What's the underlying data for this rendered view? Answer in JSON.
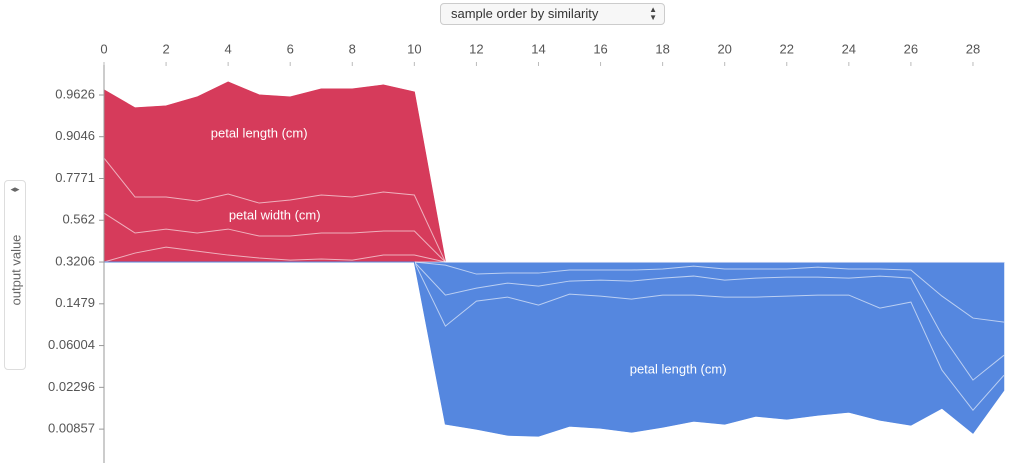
{
  "controls": {
    "order_select": "sample order by similarity"
  },
  "chart_data": {
    "type": "area",
    "ylabel": "output value",
    "yscale": "logit",
    "x": [
      0,
      1,
      2,
      3,
      4,
      5,
      6,
      7,
      8,
      9,
      10,
      11,
      12,
      13,
      14,
      15,
      16,
      17,
      18,
      19,
      20,
      21,
      22,
      23,
      24,
      25,
      26,
      27,
      28,
      29
    ],
    "xlim": [
      0,
      29
    ],
    "xticks": [
      0,
      2,
      4,
      6,
      8,
      10,
      12,
      14,
      16,
      18,
      20,
      22,
      24,
      26,
      28
    ],
    "ylim": [
      0.00411,
      0.9814
    ],
    "yticks": [
      0.9626,
      0.9046,
      0.7771,
      0.562,
      0.3206,
      0.1479,
      0.06004,
      0.02296,
      0.00857
    ],
    "series": [
      {
        "color": "#d63b5b",
        "values": [
          0.9667,
          0.9497,
          0.9519,
          0.9608,
          0.9723,
          0.9626,
          0.9608,
          0.9674,
          0.9674,
          0.9703,
          0.9651,
          0.3206,
          0.3206,
          0.3206,
          0.3206,
          0.3206,
          0.3206,
          0.3206,
          0.3206,
          0.3206,
          0.3206,
          0.3206,
          0.3206,
          0.3206,
          0.3206,
          0.3206,
          0.3206,
          0.3206,
          0.3206,
          0.3206
        ]
      },
      {
        "color": "#d63b5b",
        "values": [
          0.8506,
          0.6911,
          0.6911,
          0.6702,
          0.7062,
          0.6595,
          0.6755,
          0.7012,
          0.6911,
          0.7161,
          0.7012,
          0.3206,
          0.3206,
          0.3206,
          0.3206,
          0.3206,
          0.3206,
          0.3206,
          0.3206,
          0.3206,
          0.3206,
          0.3206,
          0.3206,
          0.3206,
          0.3206,
          0.3206,
          0.3206,
          0.3206,
          0.3206,
          0.3206
        ]
      },
      {
        "color": "#d63b5b",
        "values": [
          0.6039,
          0.4858,
          0.5095,
          0.4858,
          0.5095,
          0.4678,
          0.4678,
          0.4858,
          0.4858,
          0.4977,
          0.4977,
          0.3206,
          0.3206,
          0.3206,
          0.3206,
          0.3206,
          0.3206,
          0.3206,
          0.3206,
          0.3206,
          0.3206,
          0.3206,
          0.3206,
          0.3206,
          0.3206,
          0.3206,
          0.3206,
          0.3206,
          0.3206,
          0.3206
        ]
      },
      {
        "color": "#d63b5b",
        "values": [
          0.3206,
          0.3691,
          0.403,
          0.3801,
          0.358,
          0.3417,
          0.3309,
          0.3363,
          0.3309,
          0.358,
          0.358,
          0.3206,
          0.3206,
          0.3206,
          0.3206,
          0.3206,
          0.3206,
          0.3206,
          0.3206,
          0.3206,
          0.3206,
          0.3206,
          0.3206,
          0.3206,
          0.3206,
          0.3206,
          0.3206,
          0.3206,
          0.3206,
          0.3206
        ]
      },
      {
        "color": "#5587df",
        "values": [
          0.3206,
          0.3206,
          0.3206,
          0.3206,
          0.3206,
          0.3206,
          0.3206,
          0.3206,
          0.3206,
          0.3206,
          0.3206,
          0.3206,
          0.3206,
          0.3206,
          0.3206,
          0.3206,
          0.3206,
          0.3206,
          0.3206,
          0.3206,
          0.3206,
          0.3206,
          0.3206,
          0.3206,
          0.3206,
          0.3206,
          0.3206,
          0.3206,
          0.3206,
          0.3206
        ]
      },
      {
        "color": "#5587df",
        "values": [
          0.3206,
          0.3206,
          0.3206,
          0.3206,
          0.3206,
          0.3206,
          0.3206,
          0.3206,
          0.3206,
          0.3206,
          0.3206,
          0.3049,
          0.2614,
          0.266,
          0.266,
          0.2803,
          0.2803,
          0.2803,
          0.2852,
          0.2998,
          0.2852,
          0.2852,
          0.2852,
          0.2948,
          0.2852,
          0.2852,
          0.2803,
          0.1728,
          0.1098,
          0.1007
        ]
      },
      {
        "color": "#5587df",
        "values": [
          0.3206,
          0.3206,
          0.3206,
          0.3206,
          0.3206,
          0.3206,
          0.3206,
          0.3206,
          0.3206,
          0.3206,
          0.3206,
          0.1762,
          0.2018,
          0.2218,
          0.2096,
          0.2303,
          0.2345,
          0.2303,
          0.2432,
          0.2522,
          0.2345,
          0.2432,
          0.2477,
          0.2477,
          0.2432,
          0.2522,
          0.2432,
          0.0758,
          0.0272,
          0.0483
        ]
      },
      {
        "color": "#5587df",
        "values": [
          0.3206,
          0.3206,
          0.3206,
          0.3206,
          0.3206,
          0.3206,
          0.3206,
          0.3206,
          0.3206,
          0.3206,
          0.3206,
          0.0923,
          0.1563,
          0.1694,
          0.1441,
          0.1796,
          0.1728,
          0.1627,
          0.1762,
          0.1762,
          0.1694,
          0.1694,
          0.1728,
          0.1762,
          0.1762,
          0.1354,
          0.1532,
          0.0343,
          0.0134,
          0.0305
        ]
      },
      {
        "color": "#5587df",
        "values": [
          0.3206,
          0.3206,
          0.3206,
          0.3206,
          0.3206,
          0.3206,
          0.3206,
          0.3206,
          0.3206,
          0.3206,
          0.3206,
          0.00965,
          0.00857,
          0.00742,
          0.00725,
          0.0092,
          0.00877,
          0.00797,
          0.00898,
          0.01035,
          0.00965,
          0.01165,
          0.01085,
          0.01193,
          0.0128,
          0.0106,
          0.00942,
          0.01408,
          0.00778,
          0.02151
        ]
      }
    ],
    "annotations": [
      {
        "text": "petal length (cm)",
        "x": 5,
        "y": 0.91
      },
      {
        "text": "petal width (cm)",
        "x": 5.5,
        "y": 0.587
      },
      {
        "text": "petal length (cm)",
        "x": 18.5,
        "y": 0.0343
      }
    ]
  }
}
